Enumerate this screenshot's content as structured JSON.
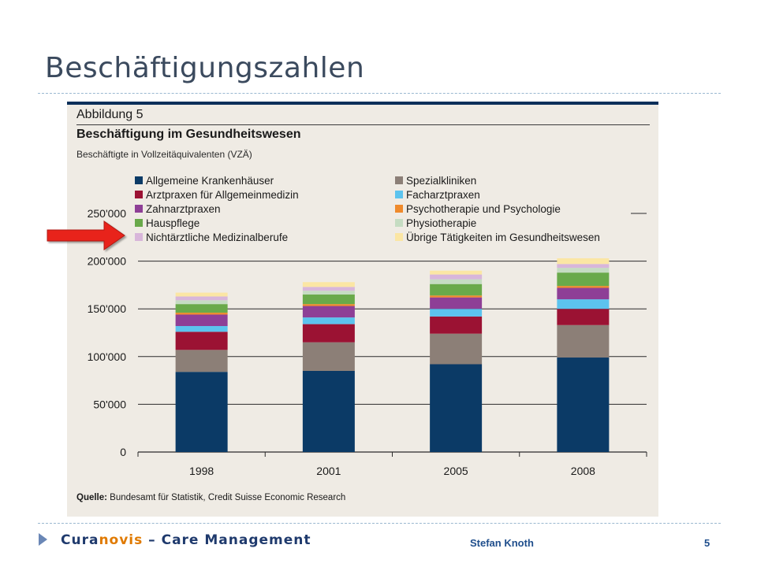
{
  "slide": {
    "title": "Beschäftigungszahlen",
    "footer_brand_pre": "Cura",
    "footer_brand_mid": "novis",
    "footer_brand_post": " – Care Management",
    "footer_author": "Stefan Knoth",
    "page_number": "5"
  },
  "figure": {
    "number": "Abbildung 5",
    "title": "Beschäftigung im Gesundheitswesen",
    "subtitle": "Beschäftigte in Vollzeitäquivalenten (VZÄ)",
    "source_label": "Quelle:",
    "source_text": " Bundesamt für Statistik, Credit Suisse Economic Research"
  },
  "colors": {
    "accent_dark_blue": "#0b2f5a",
    "highlight_arrow": "#e8231b"
  },
  "chart_data": {
    "type": "bar",
    "stacked": true,
    "categories": [
      "1998",
      "2001",
      "2005",
      "2008"
    ],
    "ylim": [
      0,
      250000
    ],
    "yticks": [
      0,
      50000,
      100000,
      150000,
      200000,
      250000
    ],
    "ytick_labels": [
      "0",
      "50'000",
      "100'000",
      "150'000",
      "200'000",
      "250'000"
    ],
    "grid": true,
    "legend_position": "top-left",
    "highlighted_series": "Hauspflege",
    "series": [
      {
        "name": "Allgemeine Krankenhäuser",
        "color": "#0b3a66",
        "values": [
          84000,
          85000,
          92000,
          99000
        ]
      },
      {
        "name": "Spezialkliniken",
        "color": "#8c7f77",
        "values": [
          23000,
          30000,
          32000,
          34000
        ]
      },
      {
        "name": "Arztpraxen für Allgemeinmedizin",
        "color": "#9b1233",
        "values": [
          19000,
          19000,
          18000,
          17000
        ]
      },
      {
        "name": "Facharztpraxen",
        "color": "#5cc3ee",
        "values": [
          6000,
          7000,
          8000,
          10000
        ]
      },
      {
        "name": "Zahnarztpraxen",
        "color": "#8e3f96",
        "values": [
          12000,
          12000,
          12000,
          12000
        ]
      },
      {
        "name": "Psychotherapie und Psychologie",
        "color": "#ef8a2c",
        "values": [
          2000,
          2000,
          2000,
          2000
        ]
      },
      {
        "name": "Hauspflege",
        "color": "#69a94a",
        "values": [
          9000,
          10000,
          12000,
          14000
        ]
      },
      {
        "name": "Physiotherapie",
        "color": "#c5dcc2",
        "values": [
          4000,
          4000,
          5000,
          5000
        ]
      },
      {
        "name": "Nichtärztliche Medizinalberufe",
        "color": "#d8b6da",
        "values": [
          4000,
          4000,
          5000,
          4000
        ]
      },
      {
        "name": "Übrige Tätigkeiten im Gesundheitswesen",
        "color": "#fbe6a4",
        "values": [
          4000,
          5000,
          4000,
          6000
        ]
      }
    ]
  }
}
